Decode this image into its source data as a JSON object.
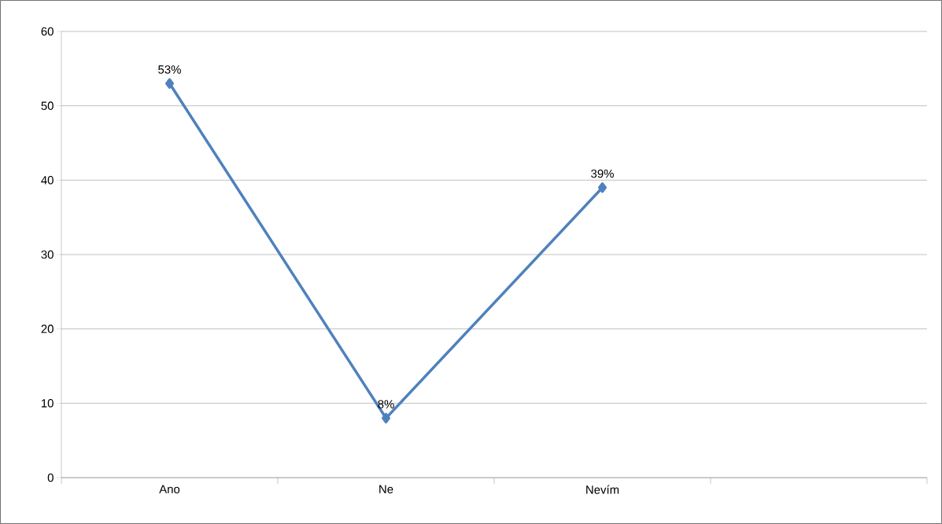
{
  "chart_data": {
    "type": "line",
    "categories": [
      "Ano",
      "Ne",
      "Nevím",
      null
    ],
    "values": [
      53,
      8,
      39,
      null
    ],
    "value_labels": [
      "53%",
      "8%",
      "39%",
      null
    ],
    "color": "#4f81bd",
    "marker": "diamond",
    "line_style": "solid",
    "ylim": [
      0,
      60
    ],
    "yticks": [
      0,
      10,
      20,
      30,
      40,
      50,
      60
    ],
    "grid": "y"
  }
}
